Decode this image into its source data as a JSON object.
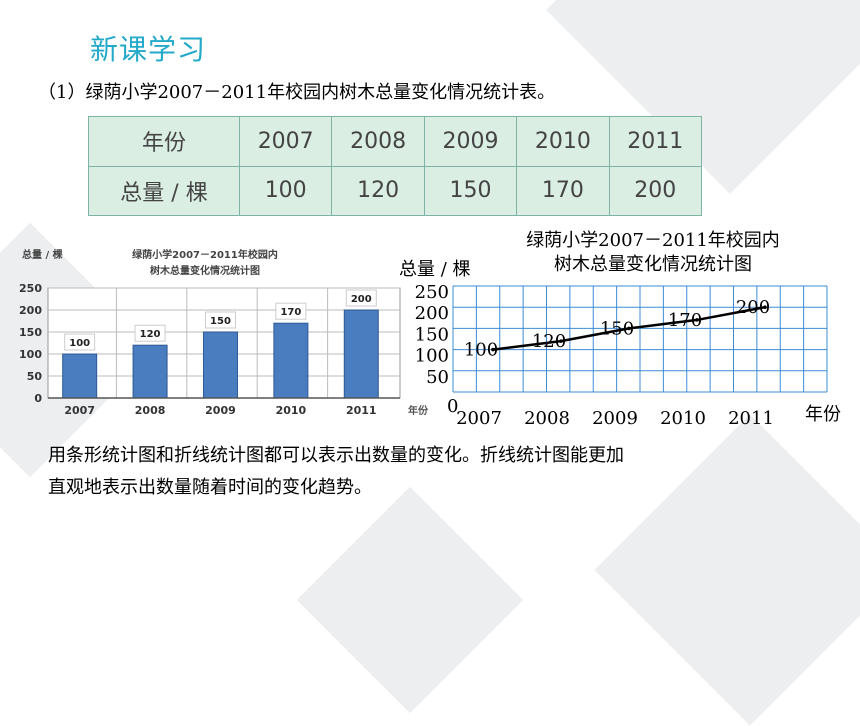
{
  "page": {
    "heading": "新课学习",
    "subtitle": "（1）绿荫小学2007－2011年校园内树木总量变化情况统计表。",
    "caption_line1": "用条形统计图和折线统计图都可以表示出数量的变化。折线统计图能更加",
    "caption_line2": "直观地表示出数量随着时间的变化趋势。"
  },
  "table": {
    "row1_header": "年份",
    "row2_header": "总量 / 棵",
    "years": [
      "2007",
      "2008",
      "2009",
      "2010",
      "2011"
    ],
    "values": [
      "100",
      "120",
      "150",
      "170",
      "200"
    ]
  },
  "colors": {
    "heading": "#23a9c9",
    "bar": "#4a7cc0",
    "table_bg": "#dbeee4",
    "grid": "#3d8bd6"
  },
  "chart_data": [
    {
      "type": "bar",
      "title_line1": "绿荫小学2007－2011年校园内",
      "title_line2": "树木总量变化情况统计图",
      "ylabel": "总量 / 棵",
      "xlabel": "年份",
      "categories": [
        "2007",
        "2008",
        "2009",
        "2010",
        "2011"
      ],
      "values": [
        100,
        120,
        150,
        170,
        200
      ],
      "ylim": [
        0,
        250
      ],
      "yticks": [
        "0",
        "50",
        "100",
        "150",
        "200",
        "250"
      ],
      "grid": true
    },
    {
      "type": "line",
      "title_line1": "绿荫小学2007－2011年校园内",
      "title_line2": "树木总量变化情况统计图",
      "ylabel": "总量 / 棵",
      "xlabel": "年份",
      "categories": [
        "2007",
        "2008",
        "2009",
        "2010",
        "2011"
      ],
      "values": [
        100,
        120,
        150,
        170,
        200
      ],
      "ylim": [
        0,
        250
      ],
      "yticks": [
        "0",
        "50",
        "100",
        "150",
        "200",
        "250"
      ],
      "grid": true
    }
  ]
}
